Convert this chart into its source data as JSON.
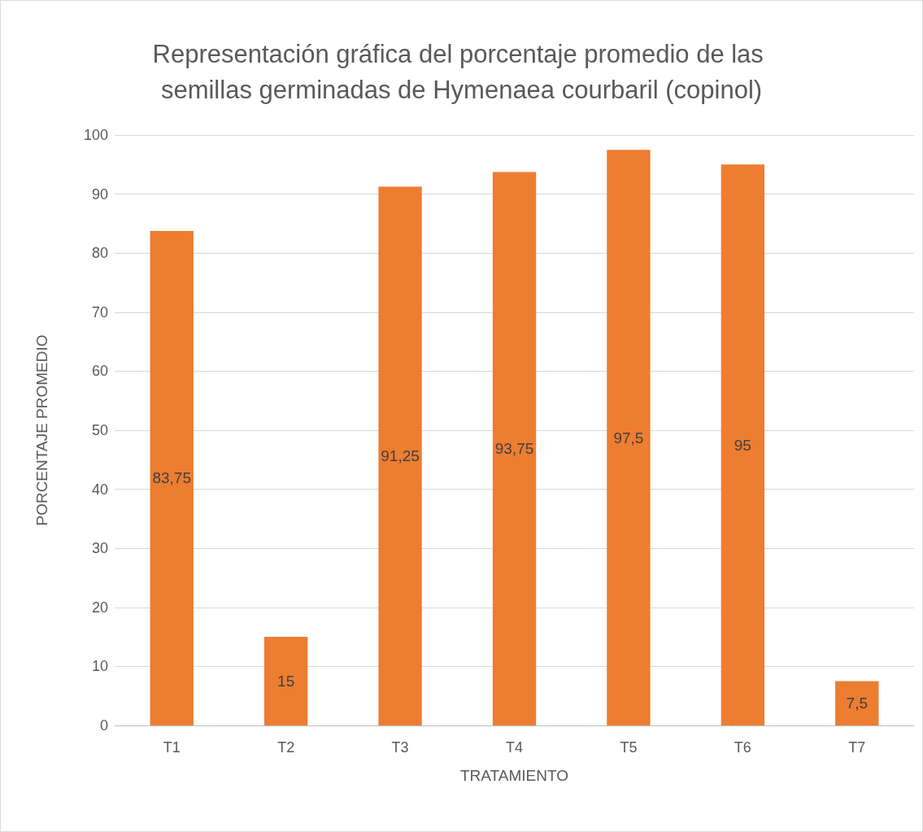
{
  "chart_data": {
    "type": "bar",
    "title": "Representación gráfica del porcentaje promedio de las semillas germinadas de Hymenaea courbaril (copinol)",
    "xlabel": "TRATAMIENTO",
    "ylabel": "PORCENTAJE PROMEDIO",
    "categories": [
      "T1",
      "T2",
      "T3",
      "T4",
      "T5",
      "T6",
      "T7"
    ],
    "values": [
      83.75,
      15,
      91.25,
      93.75,
      97.5,
      95,
      7.5
    ],
    "value_labels": [
      "83,75",
      "15",
      "91,25",
      "93,75",
      "97,5",
      "95",
      "7,5"
    ],
    "color": "#ed7d31",
    "ylim": [
      0,
      100
    ],
    "yticks": [
      0,
      10,
      20,
      30,
      40,
      50,
      60,
      70,
      80,
      90,
      100
    ],
    "grid": true
  }
}
